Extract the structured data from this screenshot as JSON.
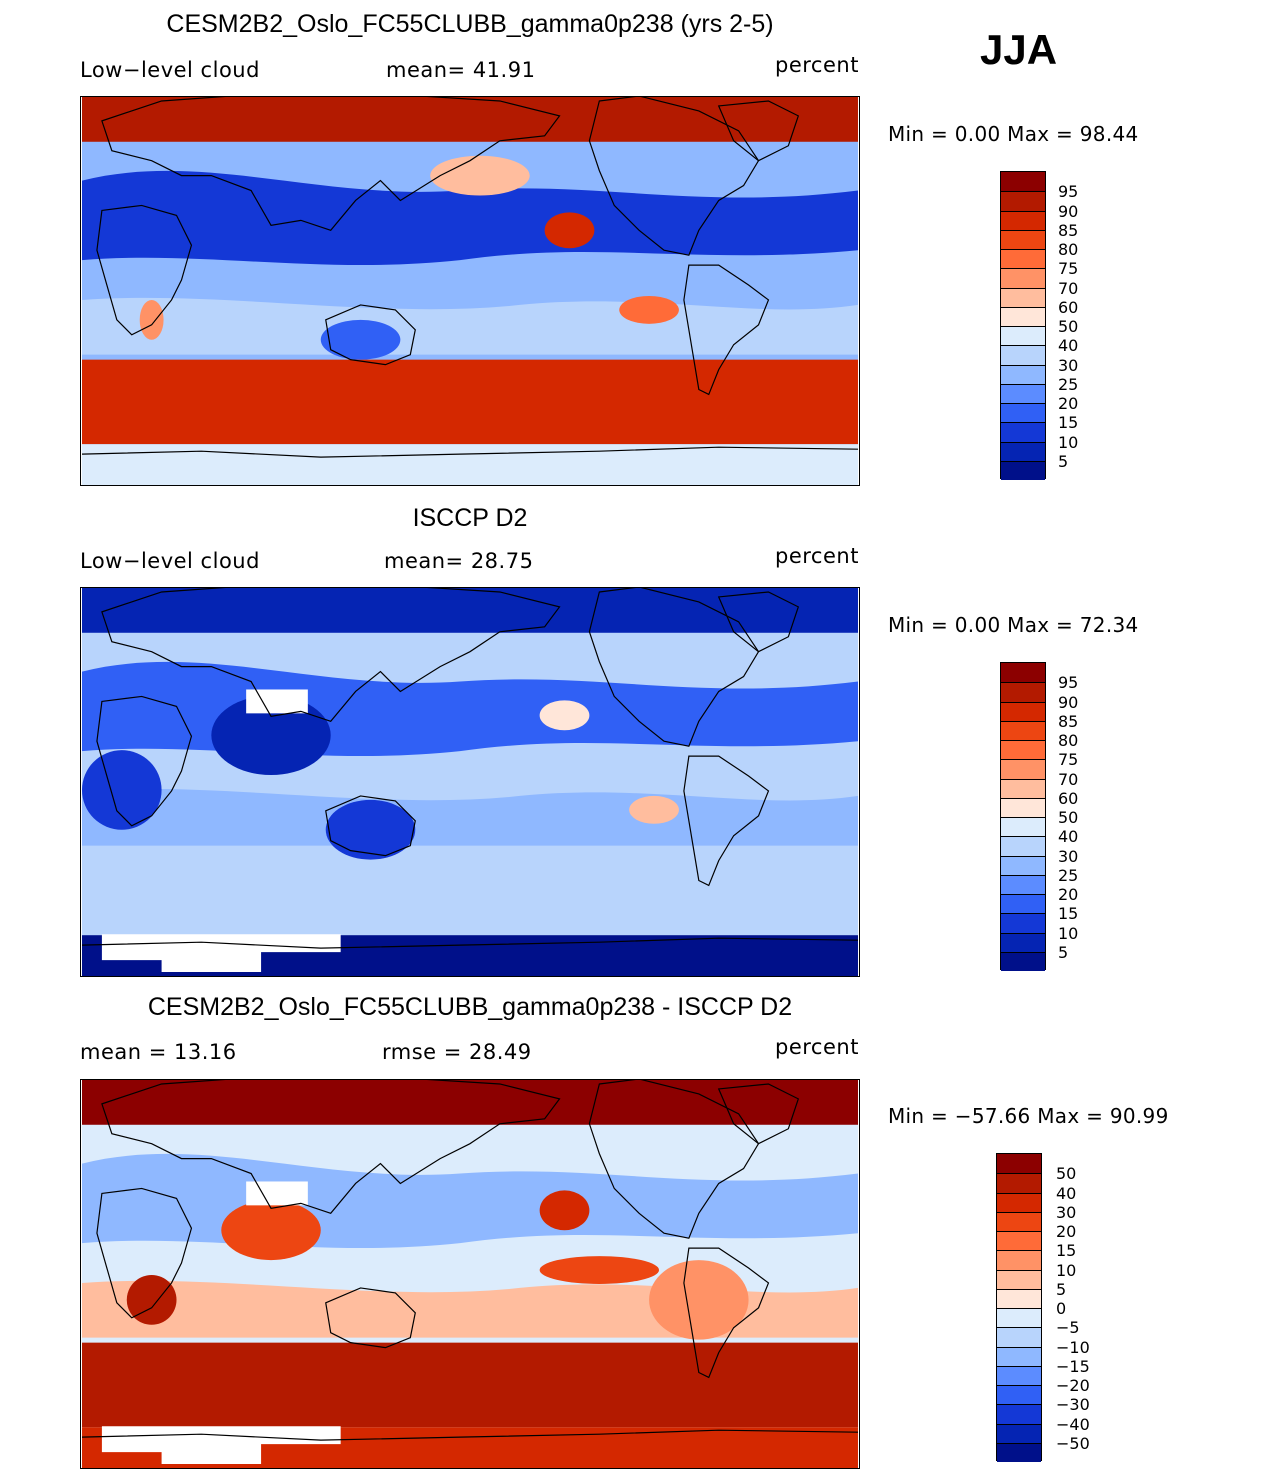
{
  "season": "JJA",
  "panels": [
    {
      "title": "CESM2B2_Oslo_FC55CLUBB_gamma0p238 (yrs 2-5)",
      "left_label": "Low−level cloud",
      "center_label": "mean=   41.91",
      "right_label": "percent",
      "minmax": "Min =     0.00 Max =    98.44",
      "kind": "model",
      "colorbar": {
        "labels": [
          "95",
          "90",
          "85",
          "80",
          "75",
          "70",
          "60",
          "50",
          "40",
          "30",
          "25",
          "20",
          "15",
          "10",
          "5"
        ],
        "colors": [
          "#8c0000",
          "#b31a00",
          "#d42800",
          "#ed4612",
          "#ff6b38",
          "#ff9266",
          "#ffbd9e",
          "#ffe6d9",
          "#dcecfc",
          "#b8d4fc",
          "#8fb8ff",
          "#5c8cff",
          "#3060f5",
          "#1438d6",
          "#0524b3",
          "#00108a"
        ]
      }
    },
    {
      "title": "ISCCP D2",
      "left_label": "Low−level cloud",
      "center_label": "mean=   28.75",
      "right_label": "percent",
      "minmax": "Min =     0.00 Max =    72.34",
      "kind": "obs",
      "colorbar": {
        "labels": [
          "95",
          "90",
          "85",
          "80",
          "75",
          "70",
          "60",
          "50",
          "40",
          "30",
          "25",
          "20",
          "15",
          "10",
          "5"
        ],
        "colors": [
          "#8c0000",
          "#b31a00",
          "#d42800",
          "#ed4612",
          "#ff6b38",
          "#ff9266",
          "#ffbd9e",
          "#ffe6d9",
          "#dcecfc",
          "#b8d4fc",
          "#8fb8ff",
          "#5c8cff",
          "#3060f5",
          "#1438d6",
          "#0524b3",
          "#00108a"
        ]
      }
    },
    {
      "title": "CESM2B2_Oslo_FC55CLUBB_gamma0p238 - ISCCP D2",
      "left_label": "mean  =    13.16",
      "center_label": "rmse  =    28.49",
      "right_label": "percent",
      "minmax": "Min =  −57.66  Max =    90.99",
      "kind": "diff",
      "colorbar": {
        "labels": [
          "50",
          "40",
          "30",
          "20",
          "15",
          "10",
          "5",
          "0",
          "−5",
          "−10",
          "−15",
          "−20",
          "−30",
          "−40",
          "−50"
        ],
        "colors": [
          "#8c0000",
          "#b31a00",
          "#d42800",
          "#ed4612",
          "#ff6b38",
          "#ff9266",
          "#ffbd9e",
          "#ffe6d9",
          "#dcecfc",
          "#b8d4fc",
          "#8fb8ff",
          "#5c8cff",
          "#3060f5",
          "#1438d6",
          "#0524b3",
          "#00108a"
        ]
      }
    }
  ]
}
